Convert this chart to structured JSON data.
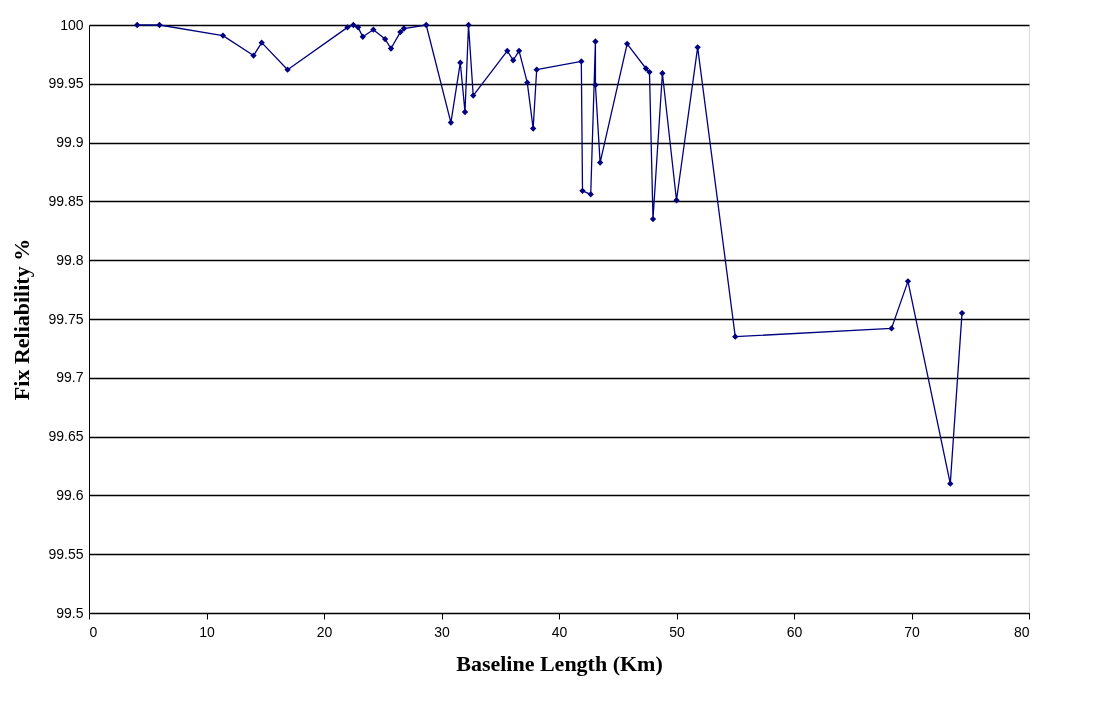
{
  "chart_data": {
    "type": "line",
    "xlabel": "Baseline Length (Km)",
    "ylabel": "Fix Reliability %",
    "xlim": [
      0,
      80
    ],
    "xticks": [
      0,
      10,
      20,
      30,
      40,
      50,
      60,
      70,
      80
    ],
    "ylim": [
      99.5,
      100
    ],
    "yticks": [
      99.5,
      99.55,
      99.6,
      99.65,
      99.7,
      99.75,
      99.8,
      99.85,
      99.9,
      99.95,
      100
    ],
    "grid": "y",
    "marker": "diamond",
    "line_style": "solid",
    "series": [
      {
        "color": "#000080",
        "x": [
          4.1,
          6.0,
          11.4,
          14.0,
          14.7,
          16.9,
          22.0,
          22.5,
          22.9,
          23.3,
          24.2,
          25.2,
          25.7,
          26.5,
          26.8,
          28.7,
          30.8,
          31.6,
          32.0,
          32.3,
          32.7,
          35.6,
          36.1,
          36.6,
          37.3,
          37.8,
          38.1,
          41.9,
          42.0,
          42.7,
          43.1,
          43.1,
          43.5,
          45.8,
          47.4,
          47.7,
          48.0,
          48.8,
          50.0,
          51.8,
          55.0,
          68.3,
          69.7,
          73.3,
          74.3
        ],
        "values": [
          100,
          100,
          99.991,
          99.974,
          99.985,
          99.962,
          99.998,
          100,
          99.998,
          99.99,
          99.996,
          99.988,
          99.98,
          99.994,
          99.997,
          100,
          99.917,
          99.968,
          99.926,
          100,
          99.94,
          99.978,
          99.97,
          99.978,
          99.951,
          99.912,
          99.962,
          99.969,
          99.859,
          99.856,
          99.986,
          99.949,
          99.883,
          99.984,
          99.963,
          99.96,
          99.835,
          99.959,
          99.851,
          99.981,
          99.735,
          99.742,
          99.782,
          99.61,
          99.755
        ]
      }
    ]
  }
}
